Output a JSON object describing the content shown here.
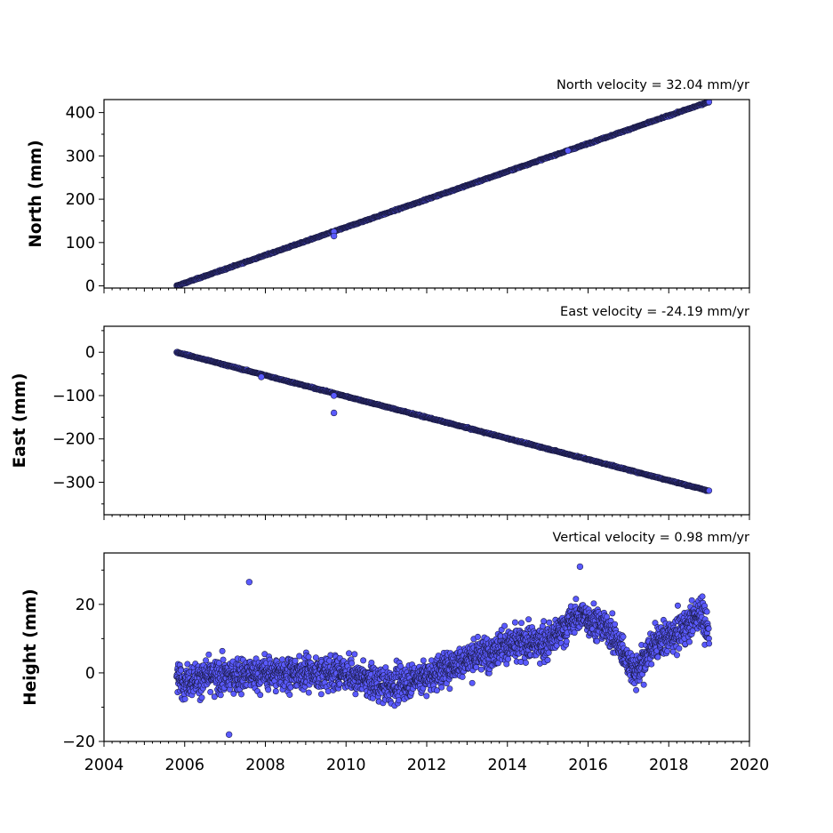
{
  "chart_data": [
    {
      "type": "scatter",
      "title": "North velocity = 32.04 mm/yr",
      "ylabel": "North (mm)",
      "xlim": [
        2004,
        2020
      ],
      "ylim": [
        -5,
        430
      ],
      "yticks": [
        0,
        100,
        200,
        300,
        400
      ],
      "ytick_labels": [
        "0",
        "100",
        "200",
        "300",
        "400"
      ],
      "x_range": [
        2005.8,
        2019.0
      ],
      "start_value": 0,
      "end_value": 425,
      "slope_mm_per_yr": 32.04,
      "outliers": [
        {
          "x": 2009.7,
          "y": 125
        },
        {
          "x": 2009.7,
          "y": 115
        },
        {
          "x": 2015.5,
          "y": 312
        }
      ],
      "color": "#5a5aff",
      "show_xtick_labels": false
    },
    {
      "type": "scatter",
      "title": "East velocity = -24.19 mm/yr",
      "ylabel": "East (mm)",
      "xlim": [
        2004,
        2020
      ],
      "ylim": [
        -375,
        60
      ],
      "yticks": [
        0,
        -100,
        -200,
        -300
      ],
      "ytick_labels": [
        "0",
        "−100",
        "−200",
        "−300"
      ],
      "x_range": [
        2005.8,
        2019.0
      ],
      "start_value": 0,
      "end_value": -320,
      "slope_mm_per_yr": -24.19,
      "outliers": [
        {
          "x": 2009.7,
          "y": -140
        },
        {
          "x": 2009.7,
          "y": -100
        },
        {
          "x": 2007.9,
          "y": -57
        }
      ],
      "color": "#5a5aff",
      "show_xtick_labels": false
    },
    {
      "type": "scatter",
      "title": "Vertical velocity = 0.98 mm/yr",
      "ylabel": "Height (mm)",
      "xlim": [
        2004,
        2020
      ],
      "ylim": [
        -20,
        35
      ],
      "yticks": [
        -20,
        0,
        20
      ],
      "ytick_labels": [
        "−20",
        "0",
        "20"
      ],
      "x_range": [
        2005.8,
        2019.0
      ],
      "trend": [
        {
          "x": 2006,
          "y": -2
        },
        {
          "x": 2008,
          "y": 0
        },
        {
          "x": 2010,
          "y": 0
        },
        {
          "x": 2011,
          "y": -4
        },
        {
          "x": 2012,
          "y": -1
        },
        {
          "x": 2013,
          "y": 4
        },
        {
          "x": 2014,
          "y": 8
        },
        {
          "x": 2015,
          "y": 9
        },
        {
          "x": 2015.8,
          "y": 17
        },
        {
          "x": 2016.5,
          "y": 13
        },
        {
          "x": 2017.2,
          "y": 0
        },
        {
          "x": 2017.6,
          "y": 8
        },
        {
          "x": 2018.3,
          "y": 12
        },
        {
          "x": 2018.8,
          "y": 18
        },
        {
          "x": 2019.0,
          "y": 10
        }
      ],
      "noise_mm": 4,
      "outliers": [
        {
          "x": 2007.6,
          "y": 26.5
        },
        {
          "x": 2015.8,
          "y": 31
        },
        {
          "x": 2007.1,
          "y": -18
        }
      ],
      "color": "#5a5aff",
      "xticks": [
        2004,
        2006,
        2008,
        2010,
        2012,
        2014,
        2016,
        2018,
        2020
      ],
      "xtick_labels": [
        "2004",
        "2006",
        "2008",
        "2010",
        "2012",
        "2014",
        "2016",
        "2018",
        "2020"
      ],
      "show_xtick_labels": true
    }
  ]
}
